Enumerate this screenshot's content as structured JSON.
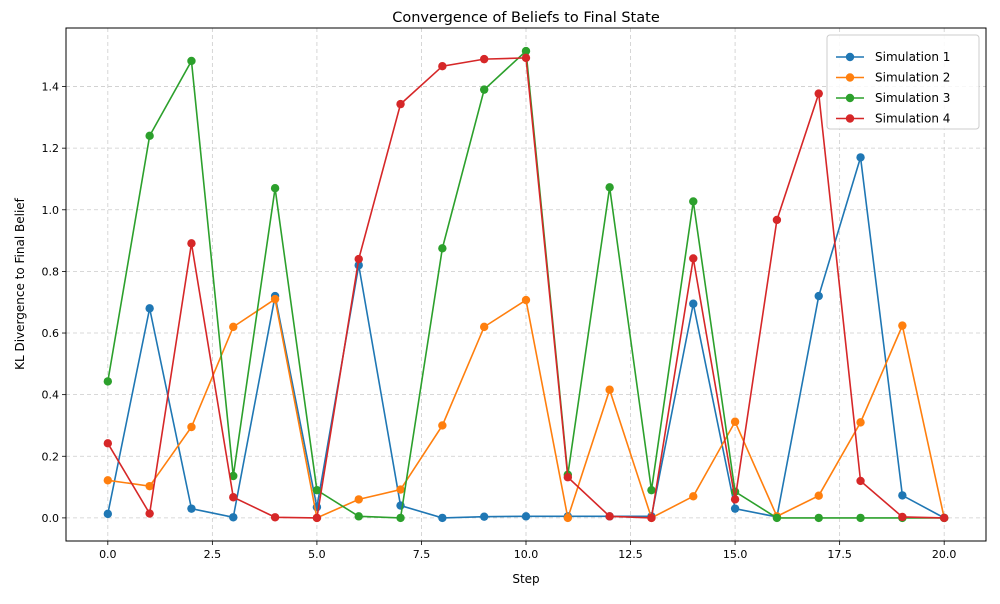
{
  "chart_data": {
    "type": "line",
    "title": "Convergence of Beliefs to Final State",
    "xlabel": "Step",
    "ylabel": "KL Divergence to Final Belief",
    "xlim": [
      -1,
      21
    ],
    "ylim": [
      -0.075,
      1.59
    ],
    "xticks": [
      0.0,
      2.5,
      5.0,
      7.5,
      10.0,
      12.5,
      15.0,
      17.5,
      20.0
    ],
    "xtick_labels": [
      "0.0",
      "2.5",
      "5.0",
      "7.5",
      "10.0",
      "12.5",
      "15.0",
      "17.5",
      "20.0"
    ],
    "yticks": [
      0.0,
      0.2,
      0.4,
      0.6,
      0.8,
      1.0,
      1.2,
      1.4
    ],
    "ytick_labels": [
      "0.0",
      "0.2",
      "0.4",
      "0.6",
      "0.8",
      "1.0",
      "1.2",
      "1.4"
    ],
    "grid": true,
    "legend_position": "top-right",
    "x": [
      0,
      1,
      2,
      3,
      4,
      5,
      6,
      7,
      8,
      9,
      10,
      11,
      12,
      13,
      14,
      15,
      16,
      17,
      18,
      19,
      20
    ],
    "series": [
      {
        "name": "Simulation 1",
        "color": "#1f77b4",
        "values": [
          0.013,
          0.68,
          0.03,
          0.002,
          0.72,
          0.035,
          0.82,
          0.04,
          0.0,
          0.004,
          0.005,
          0.005,
          0.005,
          0.005,
          0.695,
          0.03,
          0.003,
          0.72,
          1.17,
          0.073,
          0.0
        ]
      },
      {
        "name": "Simulation 2",
        "color": "#ff7f0e",
        "values": [
          0.122,
          0.103,
          0.295,
          0.62,
          0.71,
          0.0,
          0.06,
          0.092,
          0.3,
          0.62,
          0.707,
          0.0,
          0.416,
          0.0,
          0.07,
          0.312,
          0.005,
          0.072,
          0.31,
          0.624,
          0.0
        ]
      },
      {
        "name": "Simulation 3",
        "color": "#2ca02c",
        "values": [
          0.443,
          1.24,
          1.483,
          0.136,
          1.07,
          0.09,
          0.005,
          0.0,
          0.875,
          1.39,
          1.515,
          0.14,
          1.073,
          0.09,
          1.027,
          0.085,
          0.0,
          0.0,
          0.0,
          0.0,
          0.0
        ]
      },
      {
        "name": "Simulation 4",
        "color": "#d62728",
        "values": [
          0.242,
          0.014,
          0.891,
          0.067,
          0.002,
          0.0,
          0.84,
          1.343,
          1.466,
          1.489,
          1.493,
          0.132,
          0.005,
          0.0,
          0.842,
          0.06,
          0.967,
          1.377,
          0.12,
          0.003,
          0.0
        ]
      }
    ]
  }
}
